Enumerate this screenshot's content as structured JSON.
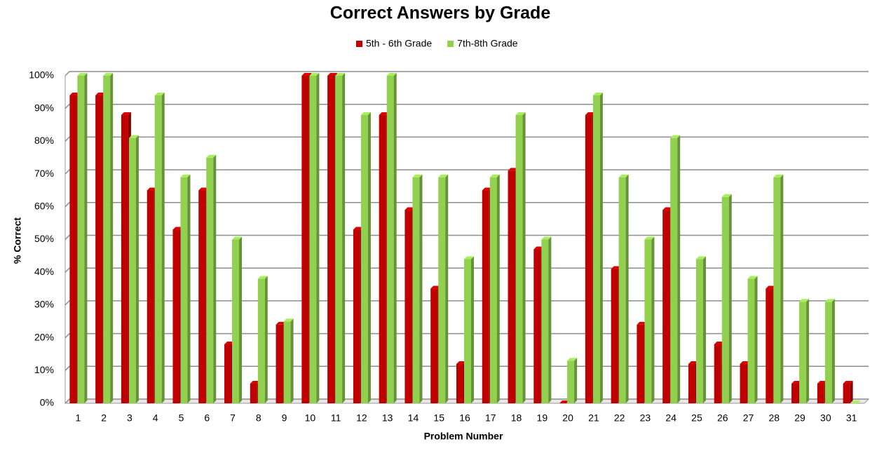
{
  "chart_data": {
    "type": "bar3d",
    "title": "Correct Answers by Grade",
    "x_label": "Problem Number",
    "y_label": "% Correct",
    "categories": [
      "1",
      "2",
      "3",
      "4",
      "5",
      "6",
      "7",
      "8",
      "9",
      "10",
      "11",
      "12",
      "13",
      "14",
      "15",
      "16",
      "17",
      "18",
      "19",
      "20",
      "21",
      "22",
      "23",
      "24",
      "25",
      "26",
      "27",
      "28",
      "29",
      "30",
      "31"
    ],
    "series": [
      {
        "name": "5th - 6th Grade",
        "color": "#c00000",
        "values": [
          94,
          94,
          88,
          65,
          53,
          65,
          18,
          6,
          24,
          100,
          100,
          53,
          88,
          59,
          35,
          12,
          65,
          71,
          47,
          0,
          88,
          41,
          24,
          59,
          12,
          18,
          12,
          35,
          6,
          6,
          6
        ]
      },
      {
        "name": "7th-8th Grade",
        "color": "#92d050",
        "values": [
          100,
          100,
          81,
          94,
          69,
          75,
          50,
          38,
          25,
          100,
          100,
          88,
          100,
          69,
          69,
          44,
          69,
          88,
          50,
          13,
          94,
          69,
          50,
          81,
          44,
          63,
          38,
          69,
          31,
          31,
          0
        ]
      }
    ],
    "ylim": [
      0,
      100
    ],
    "yticks": [
      {
        "value": 0,
        "label": "0%"
      },
      {
        "value": 10,
        "label": "10%"
      },
      {
        "value": 20,
        "label": "20%"
      },
      {
        "value": 30,
        "label": "30%"
      },
      {
        "value": 40,
        "label": "40%"
      },
      {
        "value": 50,
        "label": "50%"
      },
      {
        "value": 60,
        "label": "60%"
      },
      {
        "value": 70,
        "label": "70%"
      },
      {
        "value": 80,
        "label": "80%"
      },
      {
        "value": 90,
        "label": "90%"
      },
      {
        "value": 100,
        "label": "100%"
      }
    ],
    "grid": true,
    "legend": "top"
  }
}
